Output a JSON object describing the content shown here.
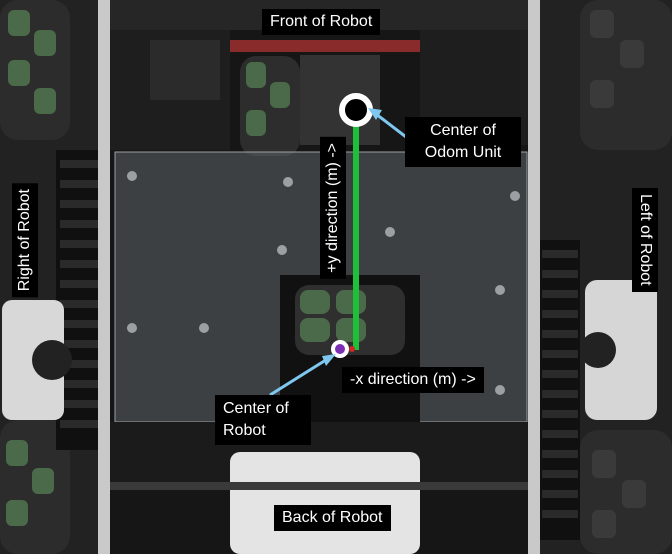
{
  "labels": {
    "front": "Front of Robot",
    "back": "Back of Robot",
    "right": "Right of Robot",
    "left": "Left of Robot",
    "odom_line1": "Center of",
    "odom_line2": "Odom Unit",
    "robot_line1": "Center of",
    "robot_line2": "Robot",
    "y_direction": "+y direction (m) ->",
    "x_direction": "-x direction (m) ->"
  },
  "colors": {
    "axis_line": "#1fbf3a",
    "pointer_arrow": "#7ec8f0",
    "odom_marker": "#ffffff",
    "robot_marker": "#7b2fb5",
    "frame": "#c9c9c9"
  }
}
